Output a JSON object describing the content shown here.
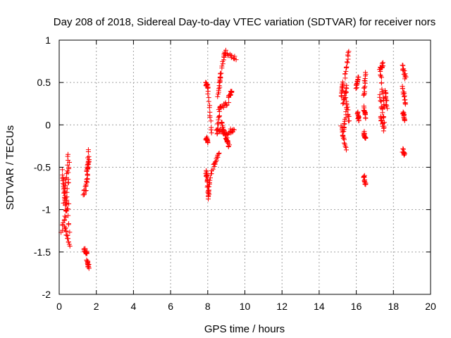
{
  "chart_data": {
    "type": "scatter",
    "title": "Day 208 of 2018, Sidereal Day-to-day VTEC variation (SDTVAR) for receiver nors",
    "xlabel": "GPS time / hours",
    "ylabel": "SDTVAR / TECUs",
    "xlim": [
      0,
      20
    ],
    "ylim": [
      -2,
      1
    ],
    "xticks": [
      0,
      2,
      4,
      6,
      8,
      10,
      12,
      14,
      16,
      18,
      20
    ],
    "xtick_labels": [
      "0",
      "2",
      "4",
      "6",
      "8",
      "10",
      "12",
      "14",
      "16",
      "18",
      "20"
    ],
    "yticks": [
      -2,
      -1.5,
      -1,
      -0.5,
      0,
      0.5,
      1
    ],
    "ytick_labels": [
      "-2",
      "-1.5",
      "-1",
      "-0.5",
      "0",
      "0.5",
      "1"
    ],
    "grid": true,
    "marker": "+",
    "marker_color": "#ff0000",
    "segments": [
      {
        "x": [
          0.15,
          0.55
        ],
        "y": [
          -0.55,
          -1.25
        ]
      },
      {
        "x": [
          0.2,
          0.35
        ],
        "y": [
          -0.6,
          -1.0
        ]
      },
      {
        "x": [
          0.25,
          0.5
        ],
        "y": [
          -0.9,
          -0.35
        ]
      },
      {
        "x": [
          0.3,
          0.55
        ],
        "y": [
          -1.2,
          -1.42
        ]
      },
      {
        "x": [
          0.12,
          0.5
        ],
        "y": [
          -1.25,
          -0.95
        ]
      },
      {
        "x": [
          0.35,
          0.55
        ],
        "y": [
          -1.0,
          -0.45
        ]
      },
      {
        "x": [
          1.3,
          1.55
        ],
        "y": [
          -0.85,
          -0.6
        ]
      },
      {
        "x": [
          1.45,
          1.6
        ],
        "y": [
          -0.75,
          -0.28
        ]
      },
      {
        "x": [
          1.5,
          1.6
        ],
        "y": [
          -0.55,
          -0.4
        ]
      },
      {
        "x": [
          1.35,
          1.5
        ],
        "y": [
          -1.47,
          -1.52
        ]
      },
      {
        "x": [
          1.5,
          1.6
        ],
        "y": [
          -1.62,
          -1.67
        ]
      },
      {
        "x": [
          7.9,
          8.0
        ],
        "y": [
          0.5,
          0.45
        ]
      },
      {
        "x": [
          8.0,
          8.2
        ],
        "y": [
          0.45,
          -0.1
        ]
      },
      {
        "x": [
          7.92,
          8.02
        ],
        "y": [
          -0.15,
          -0.2
        ]
      },
      {
        "x": [
          7.95,
          8.05
        ],
        "y": [
          -0.6,
          -0.85
        ]
      },
      {
        "x": [
          8.0,
          8.2
        ],
        "y": [
          -0.85,
          -0.55
        ]
      },
      {
        "x": [
          7.9,
          8.0
        ],
        "y": [
          -0.55,
          -0.62
        ]
      },
      {
        "x": [
          8.3,
          8.6
        ],
        "y": [
          -0.5,
          -0.35
        ]
      },
      {
        "x": [
          8.5,
          8.65
        ],
        "y": [
          -0.1,
          0.2
        ]
      },
      {
        "x": [
          8.55,
          8.7
        ],
        "y": [
          0.35,
          0.6
        ]
      },
      {
        "x": [
          8.65,
          8.95
        ],
        "y": [
          0.55,
          0.88
        ]
      },
      {
        "x": [
          8.9,
          9.5
        ],
        "y": [
          0.85,
          0.78
        ]
      },
      {
        "x": [
          8.45,
          9.0
        ],
        "y": [
          -0.05,
          -0.1
        ]
      },
      {
        "x": [
          9.0,
          9.4
        ],
        "y": [
          -0.1,
          -0.05
        ]
      },
      {
        "x": [
          8.6,
          9.1
        ],
        "y": [
          0.2,
          0.25
        ]
      },
      {
        "x": [
          9.1,
          9.3
        ],
        "y": [
          0.3,
          0.4
        ]
      },
      {
        "x": [
          8.75,
          8.95
        ],
        "y": [
          0.05,
          -0.15
        ]
      },
      {
        "x": [
          9.0,
          9.15
        ],
        "y": [
          -0.15,
          -0.25
        ]
      },
      {
        "x": [
          15.2,
          15.3
        ],
        "y": [
          0.35,
          0.5
        ]
      },
      {
        "x": [
          15.2,
          15.45
        ],
        "y": [
          0.0,
          -0.3
        ]
      },
      {
        "x": [
          15.25,
          15.45
        ],
        "y": [
          -0.15,
          0.15
        ]
      },
      {
        "x": [
          15.4,
          15.6
        ],
        "y": [
          0.55,
          0.88
        ]
      },
      {
        "x": [
          15.45,
          15.6
        ],
        "y": [
          0.3,
          0.05
        ]
      },
      {
        "x": [
          15.3,
          15.5
        ],
        "y": [
          0.25,
          0.45
        ]
      },
      {
        "x": [
          16.0,
          16.1
        ],
        "y": [
          0.45,
          0.55
        ]
      },
      {
        "x": [
          16.05,
          16.15
        ],
        "y": [
          0.15,
          0.05
        ]
      },
      {
        "x": [
          16.4,
          16.5
        ],
        "y": [
          0.35,
          0.6
        ]
      },
      {
        "x": [
          16.4,
          16.5
        ],
        "y": [
          0.2,
          0.1
        ]
      },
      {
        "x": [
          16.4,
          16.5
        ],
        "y": [
          -0.1,
          -0.15
        ]
      },
      {
        "x": [
          16.4,
          16.5
        ],
        "y": [
          -0.6,
          -0.7
        ]
      },
      {
        "x": [
          17.25,
          17.45
        ],
        "y": [
          0.65,
          0.72
        ]
      },
      {
        "x": [
          17.3,
          17.5
        ],
        "y": [
          0.6,
          0.2
        ]
      },
      {
        "x": [
          17.25,
          17.5
        ],
        "y": [
          0.35,
          0.05
        ]
      },
      {
        "x": [
          17.3,
          17.5
        ],
        "y": [
          0.1,
          -0.05
        ]
      },
      {
        "x": [
          17.55,
          17.65
        ],
        "y": [
          0.4,
          0.2
        ]
      },
      {
        "x": [
          18.5,
          18.65
        ],
        "y": [
          0.7,
          0.55
        ]
      },
      {
        "x": [
          18.5,
          18.65
        ],
        "y": [
          0.45,
          0.25
        ]
      },
      {
        "x": [
          18.5,
          18.6
        ],
        "y": [
          0.15,
          0.05
        ]
      },
      {
        "x": [
          18.5,
          18.6
        ],
        "y": [
          -0.3,
          -0.35
        ]
      }
    ]
  }
}
